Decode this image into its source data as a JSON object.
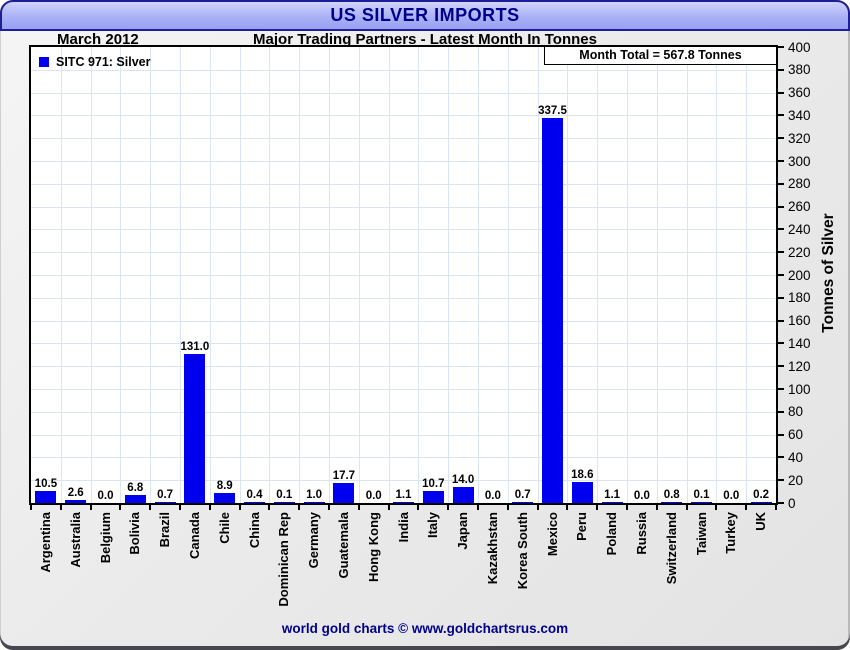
{
  "header": {
    "title": "US SILVER IMPORTS"
  },
  "subheader": {
    "date": "March 2012",
    "subtitle": "Major Trading Partners - Latest Month In Tonnes"
  },
  "legend": {
    "label": "SITC 971: Silver",
    "swatch_color": "#0000ee"
  },
  "annotation": {
    "month_total": "Month Total = 567.8 Tonnes"
  },
  "chart_data": {
    "type": "bar",
    "title": "US SILVER IMPORTS",
    "subtitle": "Major Trading Partners - Latest Month In Tonnes",
    "period": "March 2012",
    "month_total": 567.8,
    "categories": [
      "Argentina",
      "Australia",
      "Belgium",
      "Bolivia",
      "Brazil",
      "Canada",
      "Chile",
      "China",
      "Dominican Rep",
      "Germany",
      "Guatemala",
      "Hong Kong",
      "India",
      "Italy",
      "Japan",
      "Kazakhstan",
      "Korea South",
      "Mexico",
      "Peru",
      "Poland",
      "Russia",
      "Switzerland",
      "Taiwan",
      "Turkey",
      "UK"
    ],
    "values": [
      10.5,
      2.6,
      0.0,
      6.8,
      0.7,
      131.0,
      8.9,
      0.4,
      0.1,
      1.0,
      17.7,
      0.0,
      1.1,
      10.7,
      14.0,
      0.0,
      0.7,
      337.5,
      18.6,
      1.1,
      0.0,
      0.8,
      0.1,
      0.0,
      0.2
    ],
    "series_name": "SITC 971: Silver",
    "xlabel": "",
    "ylabel": "Tonnes of Silver",
    "ylim": [
      0,
      400
    ],
    "ytick_step": 20,
    "grid": true,
    "gridline_color": "#d9e5f3",
    "bar_color": "#0000ee",
    "legend_position": "top-left"
  },
  "footer": {
    "credit": "world gold charts © www.goldchartsrus.com"
  }
}
